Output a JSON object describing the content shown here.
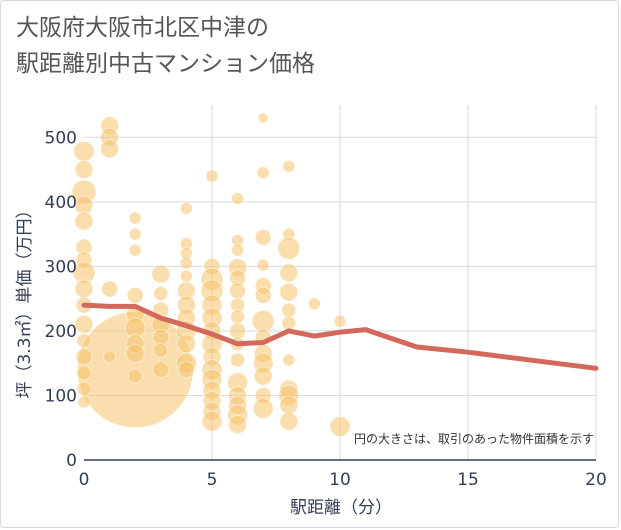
{
  "title": {
    "line1": "大阪府大阪市北区中津の",
    "line2": "駅距離別中古マンション価格"
  },
  "chart_data": {
    "type": "scatter",
    "xlabel": "駅距離（分）",
    "ylabel": "坪（3.3㎡）単価（万円）",
    "xlim": [
      0,
      20
    ],
    "ylim": [
      0,
      550
    ],
    "x_ticks": [
      0,
      5,
      10,
      15,
      20
    ],
    "y_ticks": [
      0,
      100,
      200,
      300,
      400,
      500
    ],
    "grid": true,
    "note": "円の大きさは、取引のあった物件面積を示す",
    "colors": {
      "bubble": "#f5c26b",
      "line": "#d2695a",
      "grid": "#d3dbe3"
    },
    "average_line": [
      {
        "x": 0,
        "y": 240
      },
      {
        "x": 1,
        "y": 238
      },
      {
        "x": 2,
        "y": 238
      },
      {
        "x": 3,
        "y": 220
      },
      {
        "x": 4,
        "y": 208
      },
      {
        "x": 5,
        "y": 195
      },
      {
        "x": 6,
        "y": 180
      },
      {
        "x": 7,
        "y": 182
      },
      {
        "x": 8,
        "y": 200
      },
      {
        "x": 9,
        "y": 192
      },
      {
        "x": 10,
        "y": 198
      },
      {
        "x": 11,
        "y": 202
      },
      {
        "x": 13,
        "y": 175
      },
      {
        "x": 15,
        "y": 167
      },
      {
        "x": 20,
        "y": 142
      }
    ],
    "bubbles": [
      {
        "x": 2,
        "y": 140,
        "r": 58
      },
      {
        "x": 0,
        "y": 478,
        "r": 10
      },
      {
        "x": 0,
        "y": 450,
        "r": 9
      },
      {
        "x": 0,
        "y": 415,
        "r": 12
      },
      {
        "x": 0,
        "y": 395,
        "r": 9
      },
      {
        "x": 0,
        "y": 370,
        "r": 9
      },
      {
        "x": 0,
        "y": 330,
        "r": 8
      },
      {
        "x": 0,
        "y": 310,
        "r": 8
      },
      {
        "x": 0,
        "y": 290,
        "r": 11
      },
      {
        "x": 0,
        "y": 265,
        "r": 9
      },
      {
        "x": 0,
        "y": 240,
        "r": 8
      },
      {
        "x": 0,
        "y": 210,
        "r": 9
      },
      {
        "x": 0,
        "y": 185,
        "r": 7
      },
      {
        "x": 0,
        "y": 160,
        "r": 8
      },
      {
        "x": 0,
        "y": 135,
        "r": 7
      },
      {
        "x": 0,
        "y": 110,
        "r": 7
      },
      {
        "x": 0,
        "y": 90,
        "r": 6
      },
      {
        "x": 1,
        "y": 518,
        "r": 9
      },
      {
        "x": 1,
        "y": 500,
        "r": 9
      },
      {
        "x": 1,
        "y": 482,
        "r": 9
      },
      {
        "x": 1,
        "y": 265,
        "r": 8
      },
      {
        "x": 1,
        "y": 160,
        "r": 6
      },
      {
        "x": 2,
        "y": 375,
        "r": 6
      },
      {
        "x": 2,
        "y": 350,
        "r": 6
      },
      {
        "x": 2,
        "y": 325,
        "r": 6
      },
      {
        "x": 2,
        "y": 255,
        "r": 8
      },
      {
        "x": 2,
        "y": 225,
        "r": 9
      },
      {
        "x": 2,
        "y": 205,
        "r": 10
      },
      {
        "x": 2,
        "y": 180,
        "r": 9
      },
      {
        "x": 2,
        "y": 165,
        "r": 9
      },
      {
        "x": 2,
        "y": 130,
        "r": 7
      },
      {
        "x": 3,
        "y": 288,
        "r": 9
      },
      {
        "x": 3,
        "y": 258,
        "r": 7
      },
      {
        "x": 3,
        "y": 232,
        "r": 8
      },
      {
        "x": 3,
        "y": 210,
        "r": 9
      },
      {
        "x": 3,
        "y": 190,
        "r": 8
      },
      {
        "x": 3,
        "y": 170,
        "r": 7
      },
      {
        "x": 3,
        "y": 140,
        "r": 8
      },
      {
        "x": 4,
        "y": 390,
        "r": 6
      },
      {
        "x": 4,
        "y": 335,
        "r": 6
      },
      {
        "x": 4,
        "y": 320,
        "r": 6
      },
      {
        "x": 4,
        "y": 305,
        "r": 6
      },
      {
        "x": 4,
        "y": 285,
        "r": 6
      },
      {
        "x": 4,
        "y": 262,
        "r": 9
      },
      {
        "x": 4,
        "y": 240,
        "r": 9
      },
      {
        "x": 4,
        "y": 220,
        "r": 9
      },
      {
        "x": 4,
        "y": 200,
        "r": 10
      },
      {
        "x": 4,
        "y": 180,
        "r": 9
      },
      {
        "x": 4,
        "y": 150,
        "r": 10
      },
      {
        "x": 4,
        "y": 140,
        "r": 8
      },
      {
        "x": 5,
        "y": 440,
        "r": 6
      },
      {
        "x": 5,
        "y": 300,
        "r": 8
      },
      {
        "x": 5,
        "y": 280,
        "r": 11
      },
      {
        "x": 5,
        "y": 262,
        "r": 11
      },
      {
        "x": 5,
        "y": 240,
        "r": 10
      },
      {
        "x": 5,
        "y": 220,
        "r": 10
      },
      {
        "x": 5,
        "y": 200,
        "r": 9
      },
      {
        "x": 5,
        "y": 180,
        "r": 10
      },
      {
        "x": 5,
        "y": 160,
        "r": 9
      },
      {
        "x": 5,
        "y": 140,
        "r": 10
      },
      {
        "x": 5,
        "y": 125,
        "r": 10
      },
      {
        "x": 5,
        "y": 108,
        "r": 9
      },
      {
        "x": 5,
        "y": 92,
        "r": 9
      },
      {
        "x": 5,
        "y": 75,
        "r": 9
      },
      {
        "x": 5,
        "y": 60,
        "r": 10
      },
      {
        "x": 6,
        "y": 405,
        "r": 6
      },
      {
        "x": 6,
        "y": 340,
        "r": 6
      },
      {
        "x": 6,
        "y": 325,
        "r": 6
      },
      {
        "x": 6,
        "y": 298,
        "r": 9
      },
      {
        "x": 6,
        "y": 282,
        "r": 8
      },
      {
        "x": 6,
        "y": 262,
        "r": 8
      },
      {
        "x": 6,
        "y": 240,
        "r": 7
      },
      {
        "x": 6,
        "y": 222,
        "r": 7
      },
      {
        "x": 6,
        "y": 200,
        "r": 8
      },
      {
        "x": 6,
        "y": 180,
        "r": 7
      },
      {
        "x": 6,
        "y": 155,
        "r": 7
      },
      {
        "x": 6,
        "y": 120,
        "r": 10
      },
      {
        "x": 6,
        "y": 100,
        "r": 9
      },
      {
        "x": 6,
        "y": 85,
        "r": 9
      },
      {
        "x": 6,
        "y": 70,
        "r": 10
      },
      {
        "x": 6,
        "y": 55,
        "r": 9
      },
      {
        "x": 7,
        "y": 530,
        "r": 5
      },
      {
        "x": 7,
        "y": 445,
        "r": 6
      },
      {
        "x": 7,
        "y": 345,
        "r": 8
      },
      {
        "x": 7,
        "y": 302,
        "r": 6
      },
      {
        "x": 7,
        "y": 270,
        "r": 8
      },
      {
        "x": 7,
        "y": 255,
        "r": 8
      },
      {
        "x": 7,
        "y": 215,
        "r": 11
      },
      {
        "x": 7,
        "y": 190,
        "r": 8
      },
      {
        "x": 7,
        "y": 165,
        "r": 9
      },
      {
        "x": 7,
        "y": 150,
        "r": 10
      },
      {
        "x": 7,
        "y": 130,
        "r": 9
      },
      {
        "x": 7,
        "y": 100,
        "r": 8
      },
      {
        "x": 7,
        "y": 80,
        "r": 10
      },
      {
        "x": 8,
        "y": 455,
        "r": 6
      },
      {
        "x": 8,
        "y": 350,
        "r": 6
      },
      {
        "x": 8,
        "y": 328,
        "r": 11
      },
      {
        "x": 8,
        "y": 290,
        "r": 9
      },
      {
        "x": 8,
        "y": 260,
        "r": 9
      },
      {
        "x": 8,
        "y": 232,
        "r": 7
      },
      {
        "x": 8,
        "y": 212,
        "r": 7
      },
      {
        "x": 8,
        "y": 155,
        "r": 6
      },
      {
        "x": 8,
        "y": 110,
        "r": 9
      },
      {
        "x": 8,
        "y": 100,
        "r": 10
      },
      {
        "x": 8,
        "y": 85,
        "r": 9
      },
      {
        "x": 8,
        "y": 60,
        "r": 9
      },
      {
        "x": 9,
        "y": 242,
        "r": 6
      },
      {
        "x": 10,
        "y": 215,
        "r": 6
      },
      {
        "x": 10,
        "y": 52,
        "r": 10
      }
    ]
  }
}
